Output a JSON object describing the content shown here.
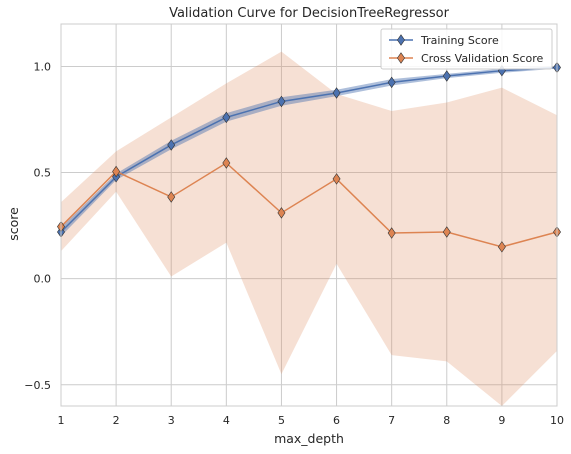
{
  "chart_data": {
    "type": "line",
    "title": "Validation Curve for DecisionTreeRegressor",
    "xlabel": "max_depth",
    "ylabel": "score",
    "xlim": [
      1,
      10
    ],
    "ylim": [
      -0.6,
      1.2
    ],
    "x": [
      1,
      2,
      3,
      4,
      5,
      6,
      7,
      8,
      9,
      10
    ],
    "x_ticks": [
      "1",
      "2",
      "3",
      "4",
      "5",
      "6",
      "7",
      "8",
      "9",
      "10"
    ],
    "y_ticks": [
      -0.5,
      0.0,
      0.5,
      1.0
    ],
    "y_tick_labels": [
      "−0.5",
      "0.0",
      "0.5",
      "1.0"
    ],
    "grid": true,
    "legend_position": "top-right",
    "series": [
      {
        "name": "Training Score",
        "color": "#4c72b0",
        "values": [
          0.22,
          0.48,
          0.63,
          0.76,
          0.835,
          0.875,
          0.925,
          0.955,
          0.98,
          0.995
        ],
        "band_lower": [
          0.2,
          0.465,
          0.61,
          0.74,
          0.815,
          0.86,
          0.91,
          0.945,
          0.97,
          0.99
        ],
        "band_upper": [
          0.24,
          0.495,
          0.65,
          0.78,
          0.855,
          0.89,
          0.94,
          0.965,
          0.99,
          1.0
        ]
      },
      {
        "name": "Cross Validation Score",
        "color": "#dd8452",
        "values": [
          0.245,
          0.505,
          0.385,
          0.545,
          0.31,
          0.47,
          0.215,
          0.22,
          0.15,
          0.22
        ],
        "band_lower": [
          0.13,
          0.41,
          0.01,
          0.17,
          -0.45,
          0.07,
          -0.36,
          -0.39,
          -0.6,
          -0.34
        ],
        "band_upper": [
          0.36,
          0.6,
          0.76,
          0.92,
          1.07,
          0.87,
          0.79,
          0.83,
          0.9,
          0.77
        ]
      }
    ]
  }
}
